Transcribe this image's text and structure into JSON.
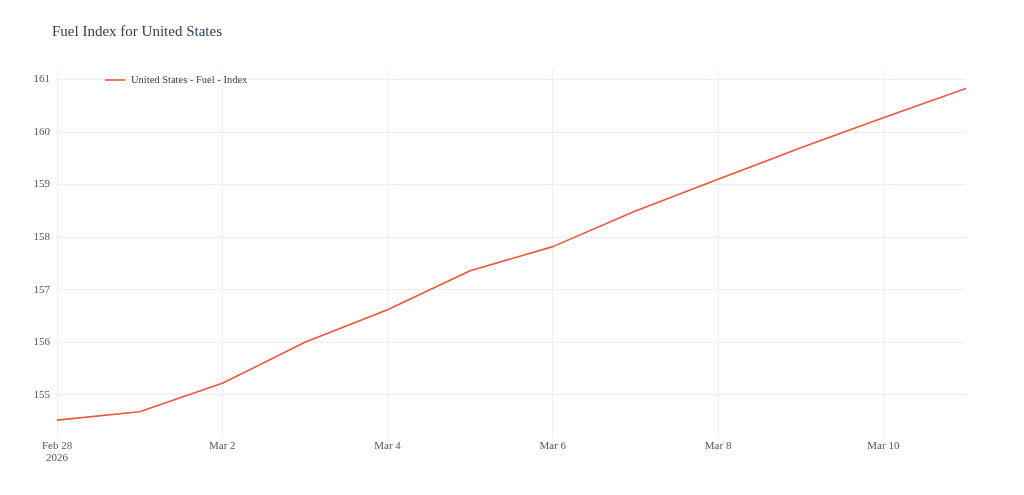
{
  "chart_data": {
    "type": "line",
    "title": "Fuel Index for United States",
    "x": [
      "2026-02-28",
      "2026-03-01",
      "2026-03-02",
      "2026-03-03",
      "2026-03-04",
      "2026-03-05",
      "2026-03-06",
      "2026-03-07",
      "2026-03-08",
      "2026-03-09",
      "2026-03-10",
      "2026-03-11"
    ],
    "series": [
      {
        "name": "United States - Fuel - Index",
        "color": "#ef553b",
        "values": [
          154.52,
          154.68,
          155.22,
          156.0,
          156.62,
          157.36,
          157.82,
          158.5,
          159.1,
          159.7,
          160.27,
          160.83
        ]
      }
    ],
    "xlim": [
      "2026-02-28",
      "2026-03-11"
    ],
    "xticks": [
      {
        "value": "2026-02-28",
        "label": "Feb 28\n2026"
      },
      {
        "value": "2026-03-02",
        "label": "Mar 2"
      },
      {
        "value": "2026-03-04",
        "label": "Mar 4"
      },
      {
        "value": "2026-03-06",
        "label": "Mar 6"
      },
      {
        "value": "2026-03-08",
        "label": "Mar 8"
      },
      {
        "value": "2026-03-10",
        "label": "Mar 10"
      }
    ],
    "ylim": [
      154.18,
      161.18
    ],
    "yticks": [
      155,
      156,
      157,
      158,
      159,
      160,
      161
    ],
    "grid": true,
    "legend": "top left"
  }
}
